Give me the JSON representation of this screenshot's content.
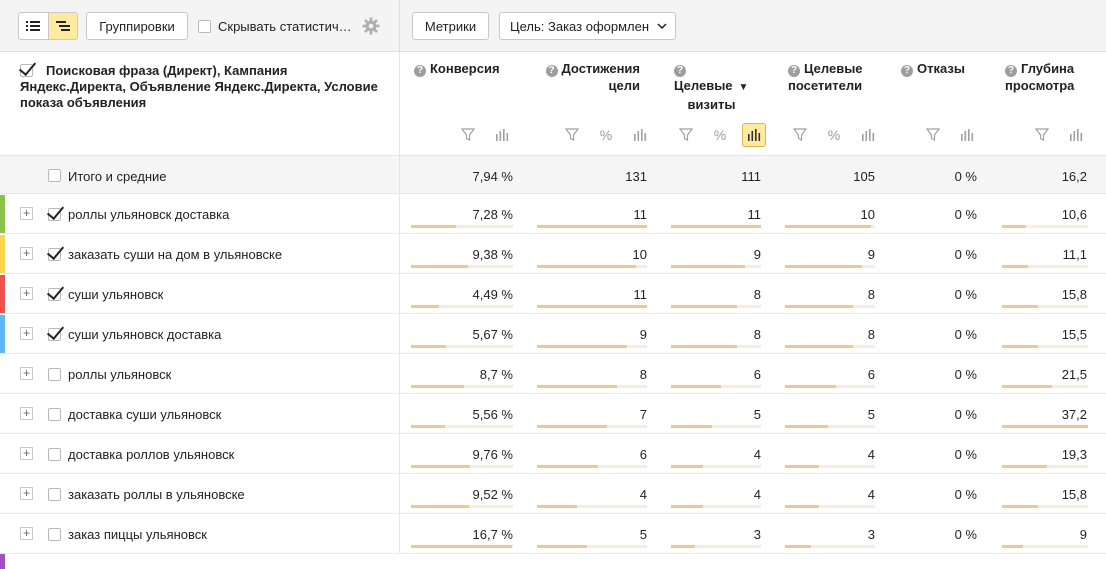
{
  "toolbar": {
    "groupings_label": "Группировки",
    "hide_stats_label": "Скрывать статистич…",
    "metrics_label": "Метрики",
    "goal_label": "Цель: Заказ оформлен"
  },
  "header": {
    "dimension_title": "Поисковая фраза (Директ), Кампания Яндекс.Директа, Объявление Яндекс.Директа, Условие показа объявления",
    "metrics": [
      {
        "l1": "Конверсия",
        "l2": ""
      },
      {
        "l1": "Достижения",
        "l2": "цели"
      },
      {
        "l1": "Целевые",
        "l2": "визиты"
      },
      {
        "l1": "Целевые",
        "l2": "посетители"
      },
      {
        "l1": "Отказы",
        "l2": ""
      },
      {
        "l1": "Глубина",
        "l2": "просмотра"
      }
    ]
  },
  "totals": {
    "label": "Итого и средние",
    "values": [
      "7,94 %",
      "131",
      "111",
      "105",
      "0 %",
      "16,2"
    ]
  },
  "rows": [
    {
      "name": "роллы ульяновск доставка",
      "checked": true,
      "color": "#8bc34a",
      "values": [
        "7,28 %",
        "11",
        "11",
        "10",
        "0 %",
        "10,6"
      ],
      "bars": [
        0.44,
        1.0,
        1.0,
        0.95,
        0,
        0.28
      ]
    },
    {
      "name": "заказать суши на дом в ульяновске",
      "checked": true,
      "color": "#ffd54f",
      "values": [
        "9,38 %",
        "10",
        "9",
        "9",
        "0 %",
        "11,1"
      ],
      "bars": [
        0.56,
        0.9,
        0.82,
        0.86,
        0,
        0.3
      ]
    },
    {
      "name": "суши ульяновск",
      "checked": true,
      "color": "#ef5350",
      "values": [
        "4,49 %",
        "11",
        "8",
        "8",
        "0 %",
        "15,8"
      ],
      "bars": [
        0.27,
        1.0,
        0.73,
        0.76,
        0,
        0.42
      ]
    },
    {
      "name": "суши ульяновск доставка",
      "checked": true,
      "color": "#64b5f6",
      "values": [
        "5,67 %",
        "9",
        "8",
        "8",
        "0 %",
        "15,5"
      ],
      "bars": [
        0.34,
        0.82,
        0.73,
        0.76,
        0,
        0.42
      ]
    },
    {
      "name": "роллы ульяновск",
      "checked": false,
      "color": "",
      "values": [
        "8,7 %",
        "8",
        "6",
        "6",
        "0 %",
        "21,5"
      ],
      "bars": [
        0.52,
        0.73,
        0.55,
        0.57,
        0,
        0.58
      ]
    },
    {
      "name": "доставка суши ульяновск",
      "checked": false,
      "color": "",
      "values": [
        "5,56 %",
        "7",
        "5",
        "5",
        "0 %",
        "37,2"
      ],
      "bars": [
        0.33,
        0.64,
        0.45,
        0.48,
        0,
        1.0
      ]
    },
    {
      "name": "доставка роллов ульяновск",
      "checked": false,
      "color": "",
      "values": [
        "9,76 %",
        "6",
        "4",
        "4",
        "0 %",
        "19,3"
      ],
      "bars": [
        0.58,
        0.55,
        0.36,
        0.38,
        0,
        0.52
      ]
    },
    {
      "name": "заказать роллы в ульяновске",
      "checked": false,
      "color": "",
      "values": [
        "9,52 %",
        "4",
        "4",
        "4",
        "0 %",
        "15,8"
      ],
      "bars": [
        0.57,
        0.36,
        0.36,
        0.38,
        0,
        0.42
      ]
    },
    {
      "name": "заказ пиццы ульяновск",
      "checked": false,
      "color": "",
      "values": [
        "16,7 %",
        "5",
        "3",
        "3",
        "0 %",
        "9"
      ],
      "bars": [
        0.99,
        0.45,
        0.27,
        0.29,
        0,
        0.24
      ]
    }
  ]
}
